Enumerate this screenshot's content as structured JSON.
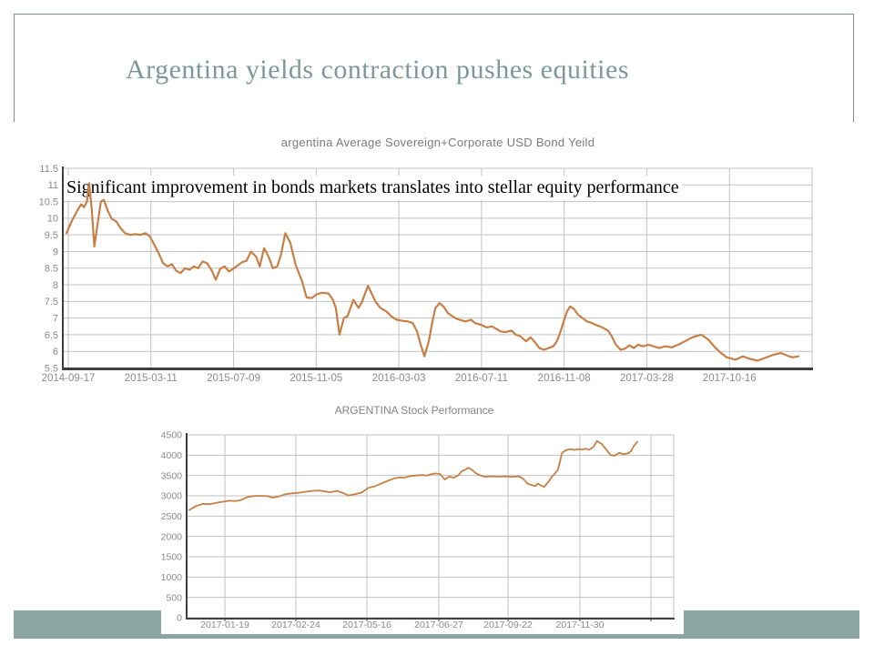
{
  "slide": {
    "title": "Argentina yields contraction pushes equities",
    "overlay_text": "Significant improvement in bonds markets translates into stellar equity performance",
    "colors": {
      "accent_bar": "#8ba6a2",
      "title_text": "#7d9899",
      "box_border": "#7c908d",
      "line_color": "#c87f45",
      "grid_color": "#c2c2c2",
      "axis_color": "#3f3f3f",
      "tick_label_color": "#8a8a8a",
      "overlay_text_color": "#000000"
    }
  },
  "chart_data": [
    {
      "type": "line",
      "title": "argentina Average Sovereign+Corporate  USD Bond Yeild",
      "ylim": [
        5.5,
        11.5
      ],
      "ytick_step": 0.5,
      "yticks": [
        5.5,
        6,
        6.5,
        7,
        7.5,
        8,
        8.5,
        9,
        9.5,
        10,
        10.5,
        11,
        11.5
      ],
      "xticklabels": [
        "2014-09-17",
        "2015-03-11",
        "2015-07-09",
        "2015-11-05",
        "2016-03-03",
        "2016-07-11",
        "2016-11-08",
        "2017-03-28",
        "2017-10-16"
      ],
      "grid": true,
      "legend": "none",
      "points": [
        [
          0,
          9.55
        ],
        [
          0.7,
          9.9
        ],
        [
          1.4,
          10.2
        ],
        [
          2,
          10.42
        ],
        [
          2.4,
          10.33
        ],
        [
          2.8,
          10.5
        ],
        [
          3.1,
          11.05
        ],
        [
          3.45,
          10.3
        ],
        [
          3.8,
          9.15
        ],
        [
          4.2,
          9.75
        ],
        [
          4.7,
          10.5
        ],
        [
          5.1,
          10.55
        ],
        [
          5.7,
          10.2
        ],
        [
          6.2,
          9.98
        ],
        [
          6.8,
          9.9
        ],
        [
          7.4,
          9.7
        ],
        [
          8,
          9.55
        ],
        [
          8.7,
          9.5
        ],
        [
          9.4,
          9.52
        ],
        [
          10.1,
          9.5
        ],
        [
          10.8,
          9.55
        ],
        [
          11.4,
          9.45
        ],
        [
          12,
          9.2
        ],
        [
          12.6,
          8.95
        ],
        [
          13.2,
          8.65
        ],
        [
          13.8,
          8.55
        ],
        [
          14.4,
          8.62
        ],
        [
          15,
          8.42
        ],
        [
          15.6,
          8.35
        ],
        [
          16.2,
          8.5
        ],
        [
          16.8,
          8.45
        ],
        [
          17.4,
          8.55
        ],
        [
          18,
          8.5
        ],
        [
          18.6,
          8.7
        ],
        [
          19.2,
          8.65
        ],
        [
          19.8,
          8.45
        ],
        [
          20.4,
          8.15
        ],
        [
          21,
          8.48
        ],
        [
          21.6,
          8.55
        ],
        [
          22.2,
          8.4
        ],
        [
          22.8,
          8.48
        ],
        [
          23.4,
          8.58
        ],
        [
          24,
          8.68
        ],
        [
          24.6,
          8.72
        ],
        [
          25.2,
          9
        ],
        [
          25.9,
          8.85
        ],
        [
          26.4,
          8.55
        ],
        [
          27,
          9.1
        ],
        [
          27.6,
          8.85
        ],
        [
          28.2,
          8.5
        ],
        [
          28.8,
          8.55
        ],
        [
          29.3,
          8.9
        ],
        [
          29.9,
          9.55
        ],
        [
          30.6,
          9.25
        ],
        [
          31.3,
          8.6
        ],
        [
          32.2,
          8.1
        ],
        [
          32.8,
          7.62
        ],
        [
          33.5,
          7.6
        ],
        [
          34.2,
          7.72
        ],
        [
          35,
          7.76
        ],
        [
          35.8,
          7.74
        ],
        [
          36.4,
          7.55
        ],
        [
          36.8,
          7.3
        ],
        [
          37.3,
          6.5
        ],
        [
          37.9,
          7
        ],
        [
          38.4,
          7.05
        ],
        [
          39.2,
          7.55
        ],
        [
          39.9,
          7.3
        ],
        [
          40.4,
          7.5
        ],
        [
          41.2,
          7.97
        ],
        [
          42.2,
          7.5
        ],
        [
          42.9,
          7.3
        ],
        [
          43.7,
          7.2
        ],
        [
          44.4,
          7.05
        ],
        [
          45.1,
          6.95
        ],
        [
          45.9,
          6.92
        ],
        [
          46.6,
          6.9
        ],
        [
          47.3,
          6.85
        ],
        [
          47.9,
          6.6
        ],
        [
          48.4,
          6.2
        ],
        [
          48.9,
          5.85
        ],
        [
          49.5,
          6.3
        ],
        [
          50,
          6.9
        ],
        [
          50.4,
          7.3
        ],
        [
          51,
          7.45
        ],
        [
          51.6,
          7.32
        ],
        [
          52.1,
          7.15
        ],
        [
          53.1,
          7
        ],
        [
          53.7,
          6.95
        ],
        [
          54.5,
          6.9
        ],
        [
          55.3,
          6.95
        ],
        [
          55.8,
          6.85
        ],
        [
          56.6,
          6.8
        ],
        [
          57.4,
          6.72
        ],
        [
          58.1,
          6.75
        ],
        [
          58.7,
          6.68
        ],
        [
          59.3,
          6.6
        ],
        [
          60,
          6.58
        ],
        [
          60.8,
          6.62
        ],
        [
          61.4,
          6.5
        ],
        [
          62,
          6.45
        ],
        [
          62.8,
          6.3
        ],
        [
          63.4,
          6.42
        ],
        [
          63.9,
          6.3
        ],
        [
          64.6,
          6.1
        ],
        [
          65.2,
          6.05
        ],
        [
          65.9,
          6.1
        ],
        [
          66.5,
          6.15
        ],
        [
          67,
          6.3
        ],
        [
          67.5,
          6.6
        ],
        [
          68,
          6.95
        ],
        [
          68.4,
          7.2
        ],
        [
          68.8,
          7.35
        ],
        [
          69.3,
          7.28
        ],
        [
          69.9,
          7.1
        ],
        [
          70.5,
          7
        ],
        [
          71.1,
          6.9
        ],
        [
          71.8,
          6.85
        ],
        [
          72.5,
          6.78
        ],
        [
          73.2,
          6.72
        ],
        [
          74,
          6.62
        ],
        [
          74.5,
          6.45
        ],
        [
          75,
          6.22
        ],
        [
          75.7,
          6.05
        ],
        [
          76.3,
          6.08
        ],
        [
          76.9,
          6.18
        ],
        [
          77.5,
          6.1
        ],
        [
          78.1,
          6.2
        ],
        [
          78.8,
          6.15
        ],
        [
          79.5,
          6.2
        ],
        [
          80.2,
          6.15
        ],
        [
          81,
          6.1
        ],
        [
          81.8,
          6.15
        ],
        [
          82.7,
          6.12
        ],
        [
          83.6,
          6.2
        ],
        [
          84.5,
          6.3
        ],
        [
          85.5,
          6.42
        ],
        [
          86.7,
          6.5
        ],
        [
          87.7,
          6.35
        ],
        [
          88.6,
          6.12
        ],
        [
          89.4,
          5.95
        ],
        [
          90.2,
          5.82
        ],
        [
          91.4,
          5.75
        ],
        [
          92.4,
          5.85
        ],
        [
          93.3,
          5.78
        ],
        [
          94.4,
          5.72
        ],
        [
          95.4,
          5.8
        ],
        [
          96.6,
          5.9
        ],
        [
          97.6,
          5.95
        ],
        [
          98.5,
          5.87
        ],
        [
          99.2,
          5.82
        ],
        [
          100,
          5.85
        ]
      ]
    },
    {
      "type": "line",
      "title": "ARGENTINA Stock Performance",
      "ylim": [
        0,
        4500
      ],
      "ytick_step": 500,
      "yticks": [
        0,
        500,
        1000,
        1500,
        2000,
        2500,
        3000,
        3500,
        4000,
        4500
      ],
      "xticklabels": [
        "2017-01-19",
        "2017-02-24",
        "2017-05-16",
        "2017-06-27",
        "2017-09-22",
        "2017-11-30"
      ],
      "grid": true,
      "legend": "none",
      "points": [
        [
          0,
          2650
        ],
        [
          1.5,
          2750
        ],
        [
          3,
          2800
        ],
        [
          4.5,
          2795
        ],
        [
          6,
          2825
        ],
        [
          7.5,
          2855
        ],
        [
          9,
          2880
        ],
        [
          10.3,
          2870
        ],
        [
          11.5,
          2895
        ],
        [
          13,
          2970
        ],
        [
          14.5,
          2995
        ],
        [
          16,
          3000
        ],
        [
          17.5,
          2990
        ],
        [
          18.5,
          2955
        ],
        [
          20,
          2985
        ],
        [
          21.5,
          3040
        ],
        [
          23,
          3060
        ],
        [
          24.5,
          3075
        ],
        [
          26,
          3100
        ],
        [
          27.5,
          3120
        ],
        [
          29,
          3130
        ],
        [
          30.3,
          3105
        ],
        [
          31.5,
          3090
        ],
        [
          33,
          3120
        ],
        [
          34.5,
          3060
        ],
        [
          35.5,
          3010
        ],
        [
          37,
          3040
        ],
        [
          38.5,
          3080
        ],
        [
          40,
          3200
        ],
        [
          41.3,
          3230
        ],
        [
          42.8,
          3300
        ],
        [
          44.3,
          3370
        ],
        [
          45.8,
          3430
        ],
        [
          47,
          3455
        ],
        [
          48,
          3445
        ],
        [
          49.3,
          3485
        ],
        [
          50.5,
          3500
        ],
        [
          51.8,
          3510
        ],
        [
          53,
          3500
        ],
        [
          54,
          3530
        ],
        [
          55,
          3550
        ],
        [
          56,
          3535
        ],
        [
          57,
          3400
        ],
        [
          58,
          3470
        ],
        [
          59,
          3445
        ],
        [
          60,
          3500
        ],
        [
          60.8,
          3600
        ],
        [
          61.5,
          3640
        ],
        [
          62.3,
          3690
        ],
        [
          63.2,
          3630
        ],
        [
          64,
          3550
        ],
        [
          65,
          3500
        ],
        [
          66,
          3465
        ],
        [
          67.5,
          3480
        ],
        [
          69,
          3470
        ],
        [
          70.5,
          3480
        ],
        [
          72,
          3465
        ],
        [
          73.5,
          3480
        ],
        [
          74.5,
          3420
        ],
        [
          75.5,
          3300
        ],
        [
          76.5,
          3260
        ],
        [
          77.2,
          3240
        ],
        [
          77.8,
          3300
        ],
        [
          78.5,
          3250
        ],
        [
          79.2,
          3220
        ],
        [
          80.2,
          3350
        ],
        [
          81,
          3480
        ],
        [
          81.7,
          3560
        ],
        [
          82.3,
          3650
        ],
        [
          83.2,
          4050
        ],
        [
          84,
          4120
        ],
        [
          85,
          4150
        ],
        [
          86,
          4130
        ],
        [
          87,
          4150
        ],
        [
          87.7,
          4140
        ],
        [
          88.5,
          4160
        ],
        [
          89.2,
          4130
        ],
        [
          90.2,
          4200
        ],
        [
          91,
          4350
        ],
        [
          92,
          4280
        ],
        [
          93,
          4150
        ],
        [
          94,
          4000
        ],
        [
          95,
          3990
        ],
        [
          96,
          4060
        ],
        [
          97,
          4020
        ],
        [
          98,
          4050
        ],
        [
          98.6,
          4100
        ],
        [
          99.2,
          4220
        ],
        [
          100,
          4330
        ]
      ]
    }
  ]
}
